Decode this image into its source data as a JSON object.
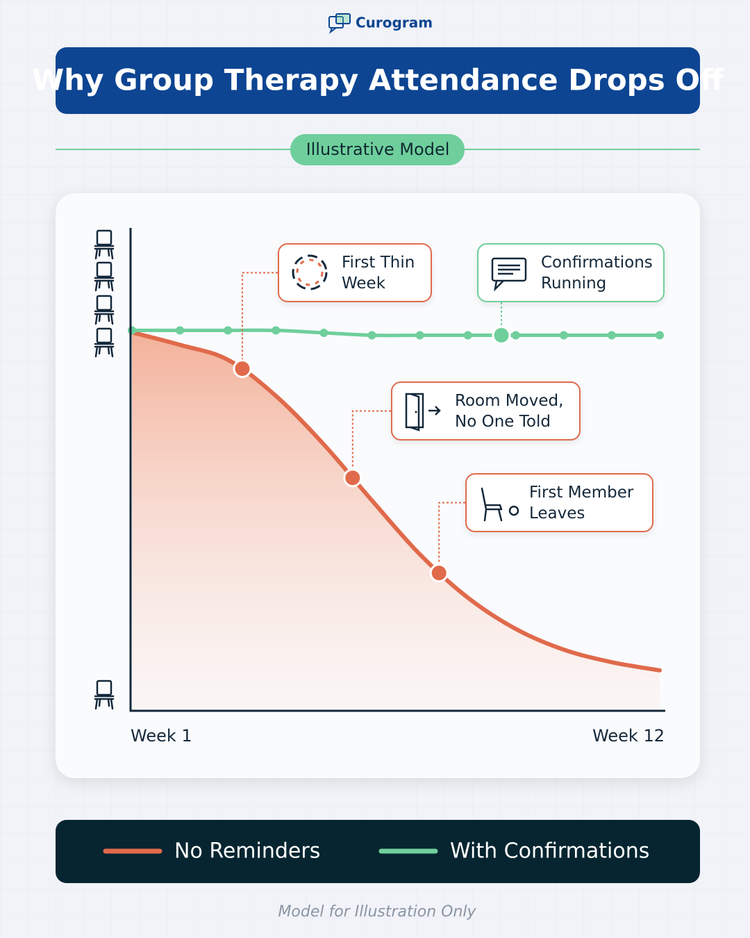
{
  "header": {
    "brand": "Curogram",
    "title": "Why Group Therapy Attendance Drops Off",
    "badge": "Illustrative Model"
  },
  "chart_data": {
    "type": "line",
    "x": [
      1,
      2,
      3,
      4,
      5,
      6,
      7,
      8,
      9,
      10,
      11,
      12
    ],
    "xlim": [
      1,
      12
    ],
    "xticks": [
      {
        "value": 1,
        "label": "Week 1"
      },
      {
        "value": 12,
        "label": "Week 12"
      }
    ],
    "ylim": [
      0,
      100
    ],
    "series": [
      {
        "name": "No Reminders",
        "color": "#e06a4b",
        "values": [
          78.6,
          76,
          72.9,
          65.4,
          55.3,
          43.7,
          32.5,
          23.5,
          17,
          12.7,
          10.1,
          8.4
        ]
      },
      {
        "name": "With Confirmations",
        "color": "#6fcf9c",
        "values": [
          79,
          79,
          79,
          79,
          78.5,
          78,
          78,
          78,
          78,
          78,
          78,
          78
        ]
      }
    ],
    "annotations": [
      {
        "text": "First Thin Week",
        "series": 0,
        "x": 3.3
      },
      {
        "text": "Room Moved, No One Told",
        "series": 0,
        "x": 5.6
      },
      {
        "text": "First Member Leaves",
        "series": 0,
        "x": 7.4
      },
      {
        "text": "Confirmations Running",
        "series": 1,
        "x": 8.7
      }
    ]
  },
  "footer": "Model for Illustration Only"
}
